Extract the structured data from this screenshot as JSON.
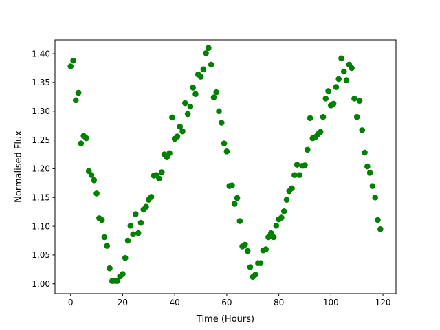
{
  "chart_data": {
    "type": "scatter",
    "title": "",
    "xlabel": "Time (Hours)",
    "ylabel": "Normalised Flux",
    "xlim": [
      -6,
      125
    ],
    "ylim": [
      0.983,
      1.424
    ],
    "xticks": [
      0,
      20,
      40,
      60,
      80,
      100,
      120
    ],
    "xtick_labels": [
      "0",
      "20",
      "40",
      "60",
      "80",
      "100",
      "120"
    ],
    "yticks": [
      1.0,
      1.05,
      1.1,
      1.15,
      1.2,
      1.25,
      1.3,
      1.35,
      1.4
    ],
    "ytick_labels": [
      "1.00",
      "1.05",
      "1.10",
      "1.15",
      "1.20",
      "1.25",
      "1.30",
      "1.35",
      "1.40"
    ],
    "grid": false,
    "legend": "none",
    "marker_color": "#008000",
    "series": [
      {
        "x": [
          0,
          1,
          2,
          3,
          4,
          5,
          6,
          7,
          8,
          9,
          10,
          11,
          12,
          13,
          14,
          15,
          16,
          17,
          18,
          19,
          20,
          21,
          22,
          23,
          24,
          25,
          26,
          27,
          28,
          29,
          30,
          31,
          32,
          33,
          34,
          35,
          36,
          37,
          38,
          39,
          40,
          41,
          42,
          43,
          44,
          45,
          46,
          47,
          48,
          49,
          50,
          51,
          52,
          53,
          54,
          55,
          56,
          57,
          58,
          59,
          60,
          61,
          62,
          63,
          64,
          65,
          66,
          67,
          68,
          69,
          70,
          71,
          72,
          73,
          74,
          75,
          76,
          77,
          78,
          79,
          80,
          81,
          82,
          83,
          84,
          85,
          86,
          87,
          88,
          89,
          90,
          91,
          92,
          93,
          94,
          95,
          96,
          97,
          98,
          99,
          100,
          101,
          102,
          103,
          104,
          105,
          106,
          107,
          108,
          109,
          110,
          111,
          112,
          113,
          114,
          115,
          116,
          117,
          118,
          119
        ],
        "y": [
          1.378,
          1.388,
          1.319,
          1.332,
          1.244,
          1.257,
          1.253,
          1.196,
          1.189,
          1.18,
          1.157,
          1.114,
          1.111,
          1.081,
          1.066,
          1.027,
          1.005,
          1.005,
          1.005,
          1.013,
          1.017,
          1.045,
          1.075,
          1.101,
          1.086,
          1.121,
          1.088,
          1.106,
          1.129,
          1.134,
          1.146,
          1.151,
          1.188,
          1.189,
          1.183,
          1.194,
          1.225,
          1.22,
          1.227,
          1.289,
          1.252,
          1.256,
          1.273,
          1.265,
          1.314,
          1.295,
          1.308,
          1.341,
          1.33,
          1.364,
          1.36,
          1.373,
          1.401,
          1.41,
          1.381,
          1.324,
          1.333,
          1.3,
          1.28,
          1.244,
          1.23,
          1.17,
          1.171,
          1.139,
          1.149,
          1.109,
          1.065,
          1.068,
          1.057,
          1.029,
          1.012,
          1.016,
          1.036,
          1.036,
          1.058,
          1.06,
          1.081,
          1.088,
          1.081,
          1.101,
          1.112,
          1.115,
          1.126,
          1.146,
          1.161,
          1.166,
          1.189,
          1.207,
          1.189,
          1.205,
          1.206,
          1.233,
          1.288,
          1.253,
          1.255,
          1.26,
          1.264,
          1.29,
          1.322,
          1.335,
          1.31,
          1.313,
          1.342,
          1.356,
          1.392,
          1.369,
          1.354,
          1.381,
          1.375,
          1.322,
          1.29,
          1.318,
          1.267,
          1.228,
          1.204,
          1.193,
          1.17,
          1.15,
          1.111,
          1.095
        ]
      }
    ]
  }
}
